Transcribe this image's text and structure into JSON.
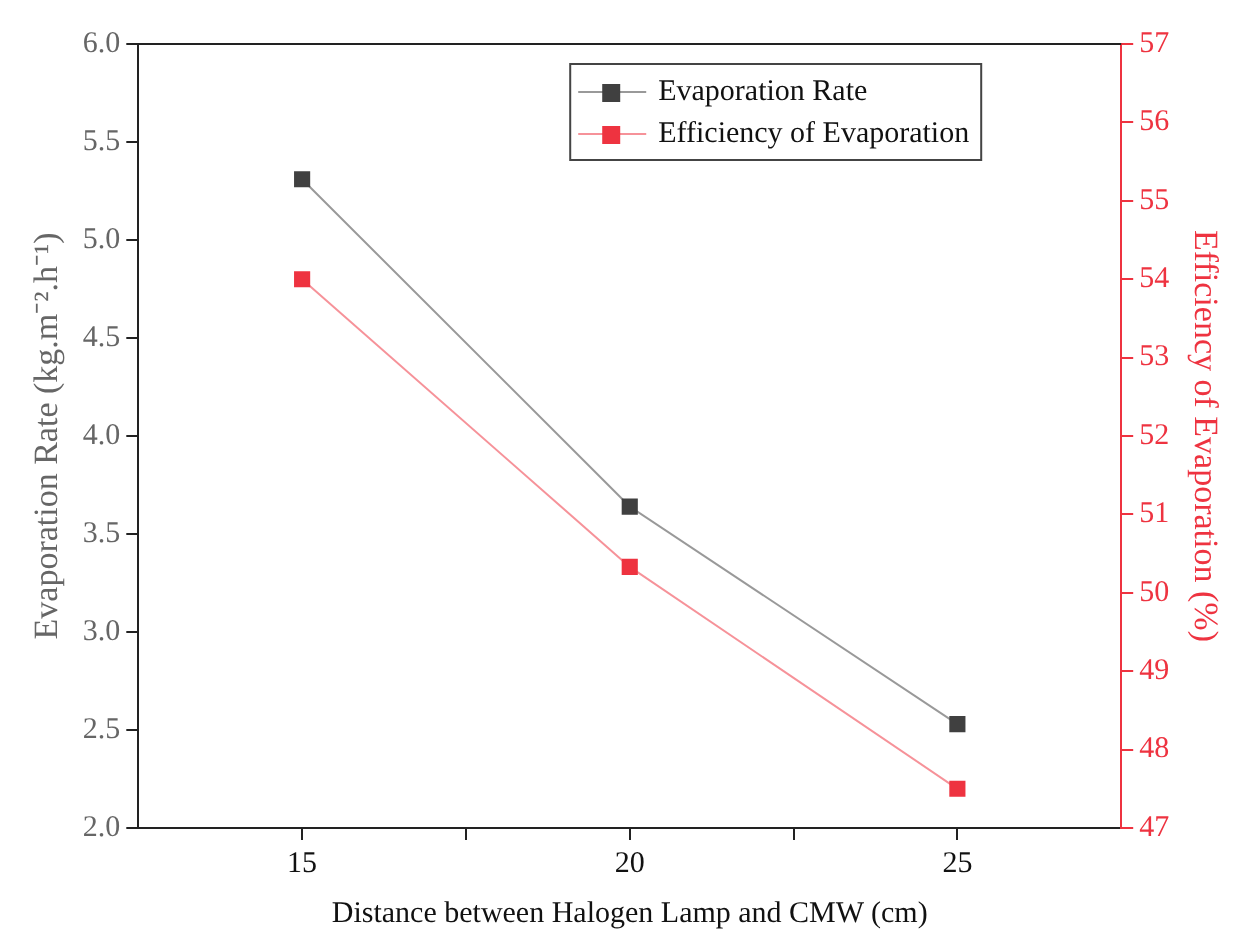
{
  "chart_data": {
    "type": "line",
    "xlabel": "Distance between Halogen Lamp and CMW (cm)",
    "ylabel": "Evaporation Rate (kg.m⁻².h⁻¹)",
    "y2label": "Efficiency of Evaporation (%)",
    "x": [
      15,
      20,
      25
    ],
    "series": [
      {
        "name": "Evaporation Rate",
        "color": "#404040",
        "values": [
          5.31,
          3.64,
          2.53
        ]
      },
      {
        "name": "Efficiency of Evaporation",
        "color": "#ee3340",
        "axis": "y2",
        "values": [
          54.0,
          50.33,
          47.5
        ]
      }
    ],
    "xlim": [
      12.5,
      27.5
    ],
    "xticks": [
      15,
      {
        "value": 17.5,
        "label": null
      },
      20,
      {
        "value": 22.5,
        "label": null
      },
      25
    ],
    "ylim": [
      2.0,
      6.0
    ],
    "yticks": [
      {
        "value": 2,
        "label": "2.0"
      },
      {
        "value": 2.5,
        "label": "2.5"
      },
      {
        "value": 3,
        "label": "3.0"
      },
      {
        "value": 3.5,
        "label": "3.5"
      },
      {
        "value": 4,
        "label": "4.0"
      },
      {
        "value": 4.5,
        "label": "4.5"
      },
      {
        "value": 5,
        "label": "5.0"
      },
      {
        "value": 5.5,
        "label": "5.5"
      },
      {
        "value": 6,
        "label": "6.0"
      }
    ],
    "y2lim": [
      47,
      57
    ],
    "y2ticks": [
      47,
      48,
      49,
      50,
      51,
      52,
      53,
      54,
      55,
      56,
      57
    ],
    "grid": false,
    "legend": "top right",
    "marker": "square",
    "line_style": "solid"
  }
}
